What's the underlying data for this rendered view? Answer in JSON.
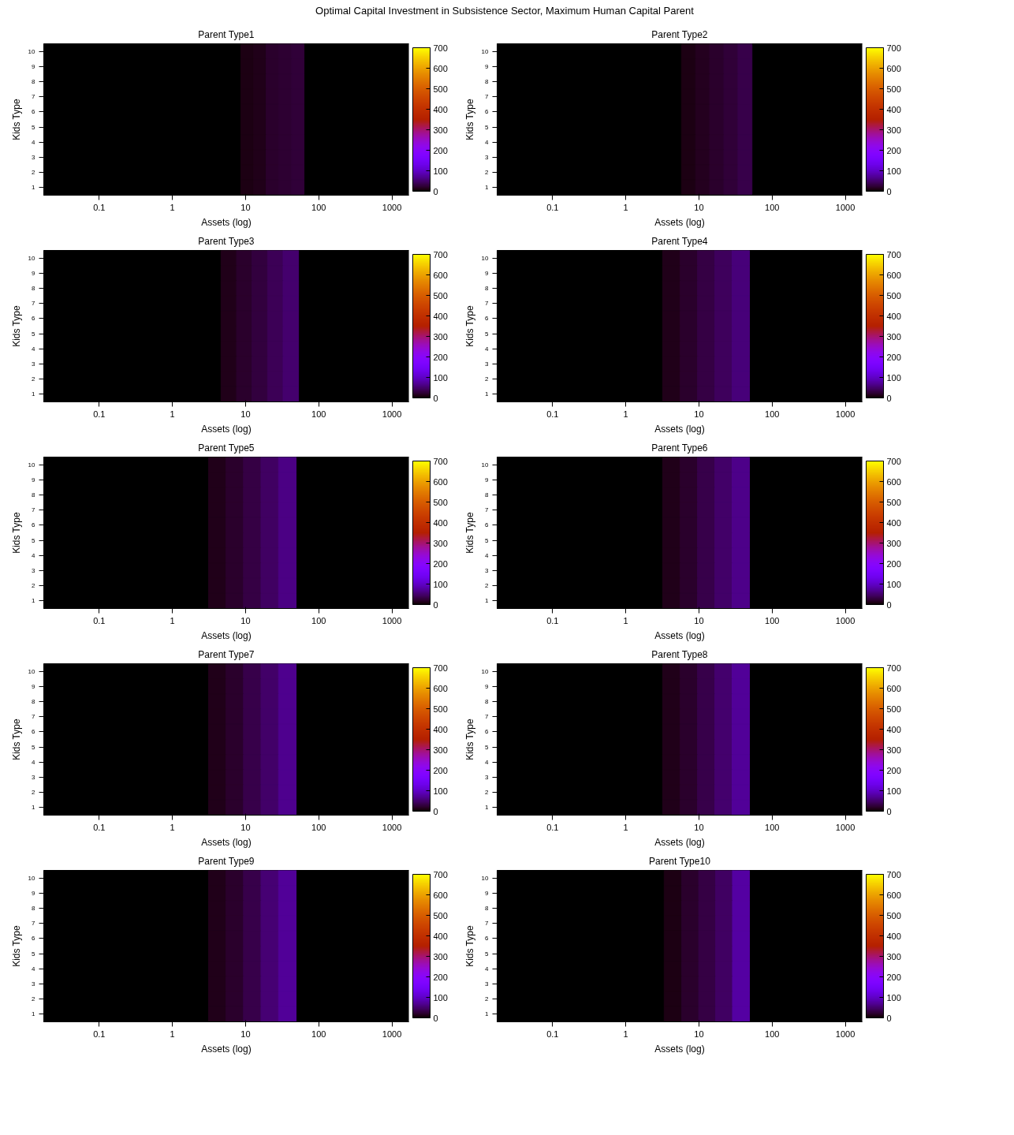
{
  "chart_data": [
    {
      "type": "other",
      "title": "Optimal Capital Investment in Subsistence Sector, Maximum Human Capital Parent"
    },
    {
      "type": "heatmap",
      "title": "Parent Type1",
      "xlabel": "Assets (log)",
      "ylabel": "Kids Type",
      "log": "x",
      "xlim": [
        0.0175,
        1700
      ],
      "xticks": [
        0.1,
        1,
        10,
        100,
        1000
      ],
      "clim": [
        0,
        700
      ],
      "cticks": [
        0,
        100,
        200,
        300,
        400,
        500,
        600,
        700
      ],
      "y_categories": [
        "10",
        "9",
        "8",
        "7",
        "6",
        "5",
        "4",
        "3",
        "2",
        "1"
      ],
      "x": [
        10.5,
        15.6,
        23.3,
        34.7,
        51.6
      ],
      "cells": [
        [
          8,
          12,
          18,
          22,
          25
        ],
        [
          8,
          12,
          18,
          22,
          25
        ],
        [
          8,
          12,
          18,
          22,
          25
        ],
        [
          8,
          12,
          18,
          22,
          25
        ],
        [
          8,
          12,
          18,
          22,
          25
        ],
        [
          8,
          12,
          18,
          22,
          25
        ],
        [
          8,
          12,
          18,
          22,
          25
        ],
        [
          8,
          12,
          18,
          22,
          25
        ],
        [
          8,
          12,
          18,
          22,
          25
        ],
        [
          8,
          12,
          18,
          22,
          25
        ]
      ]
    },
    {
      "type": "heatmap",
      "title": "Parent Type2",
      "xlabel": "Assets (log)",
      "ylabel": "Kids Type",
      "log": "x",
      "xlim": [
        0.0175,
        1700
      ],
      "xticks": [
        0.1,
        1,
        10,
        100,
        1000
      ],
      "clim": [
        0,
        700
      ],
      "cticks": [
        0,
        100,
        200,
        300,
        400,
        500,
        600,
        700
      ],
      "y_categories": [
        "10",
        "9",
        "8",
        "7",
        "6",
        "5",
        "4",
        "3",
        "2",
        "1"
      ],
      "x": [
        7.2,
        11.2,
        17.5,
        27.3,
        42.5
      ],
      "cells": [
        [
          8,
          14,
          20,
          26,
          32
        ],
        [
          8,
          14,
          20,
          26,
          32
        ],
        [
          8,
          14,
          20,
          26,
          32
        ],
        [
          8,
          14,
          20,
          26,
          32
        ],
        [
          8,
          14,
          20,
          26,
          32
        ],
        [
          8,
          14,
          20,
          26,
          32
        ],
        [
          8,
          14,
          20,
          26,
          32
        ],
        [
          8,
          14,
          20,
          26,
          32
        ],
        [
          8,
          14,
          20,
          26,
          32
        ],
        [
          8,
          14,
          20,
          26,
          32
        ]
      ]
    },
    {
      "type": "heatmap",
      "title": "Parent Type3",
      "xlabel": "Assets (log)",
      "ylabel": "Kids Type",
      "log": "x",
      "xlim": [
        0.0175,
        1700
      ],
      "xticks": [
        0.1,
        1,
        10,
        100,
        1000
      ],
      "clim": [
        0,
        700
      ],
      "cticks": [
        0,
        100,
        200,
        300,
        400,
        500,
        600,
        700
      ],
      "y_categories": [
        "10",
        "9",
        "8",
        "7",
        "6",
        "5",
        "4",
        "3",
        "2",
        "1"
      ],
      "x": [
        5.9,
        9.6,
        15.6,
        25.5,
        41.5
      ],
      "cells": [
        [
          10,
          18,
          28,
          38,
          50
        ],
        [
          10,
          18,
          28,
          38,
          50
        ],
        [
          10,
          18,
          28,
          38,
          50
        ],
        [
          10,
          18,
          28,
          38,
          50
        ],
        [
          10,
          18,
          28,
          38,
          50
        ],
        [
          10,
          18,
          28,
          38,
          50
        ],
        [
          10,
          18,
          28,
          38,
          50
        ],
        [
          10,
          18,
          28,
          38,
          50
        ],
        [
          10,
          18,
          28,
          38,
          50
        ],
        [
          10,
          18,
          28,
          38,
          50
        ]
      ]
    },
    {
      "type": "heatmap",
      "title": "Parent Type4",
      "xlabel": "Assets (log)",
      "ylabel": "Kids Type",
      "log": "x",
      "xlim": [
        0.0175,
        1700
      ],
      "xticks": [
        0.1,
        1,
        10,
        100,
        1000
      ],
      "clim": [
        0,
        700
      ],
      "cticks": [
        0,
        100,
        200,
        300,
        400,
        500,
        600,
        700
      ],
      "y_categories": [
        "10",
        "9",
        "8",
        "7",
        "6",
        "5",
        "4",
        "3",
        "2",
        "1"
      ],
      "x": [
        4.2,
        7.3,
        12.5,
        21.6,
        37.3
      ],
      "cells": [
        [
          10,
          18,
          30,
          42,
          55
        ],
        [
          10,
          18,
          30,
          42,
          55
        ],
        [
          10,
          18,
          30,
          42,
          55
        ],
        [
          10,
          18,
          30,
          42,
          55
        ],
        [
          10,
          18,
          30,
          42,
          55
        ],
        [
          10,
          18,
          30,
          42,
          55
        ],
        [
          10,
          18,
          30,
          42,
          55
        ],
        [
          10,
          18,
          30,
          42,
          55
        ],
        [
          10,
          18,
          30,
          42,
          55
        ],
        [
          10,
          18,
          30,
          42,
          55
        ]
      ]
    },
    {
      "type": "heatmap",
      "title": "Parent Type5",
      "xlabel": "Assets (log)",
      "ylabel": "Kids Type",
      "log": "x",
      "xlim": [
        0.0175,
        1700
      ],
      "xticks": [
        0.1,
        1,
        10,
        100,
        1000
      ],
      "clim": [
        0,
        700
      ],
      "cticks": [
        0,
        100,
        200,
        300,
        400,
        500,
        600,
        700
      ],
      "y_categories": [
        "10",
        "9",
        "8",
        "7",
        "6",
        "5",
        "4",
        "3",
        "2",
        "1"
      ],
      "x": [
        4.1,
        7.1,
        12.3,
        21.4,
        37.2
      ],
      "cells": [
        [
          10,
          18,
          30,
          44,
          60
        ],
        [
          10,
          18,
          30,
          44,
          60
        ],
        [
          10,
          18,
          30,
          44,
          60
        ],
        [
          10,
          18,
          30,
          44,
          60
        ],
        [
          10,
          18,
          30,
          44,
          60
        ],
        [
          10,
          18,
          30,
          44,
          60
        ],
        [
          10,
          18,
          30,
          44,
          60
        ],
        [
          10,
          18,
          30,
          44,
          60
        ],
        [
          10,
          18,
          30,
          44,
          60
        ],
        [
          10,
          18,
          30,
          44,
          60
        ]
      ]
    },
    {
      "type": "heatmap",
      "title": "Parent Type6",
      "xlabel": "Assets (log)",
      "ylabel": "Kids Type",
      "log": "x",
      "xlim": [
        0.0175,
        1700
      ],
      "xticks": [
        0.1,
        1,
        10,
        100,
        1000
      ],
      "clim": [
        0,
        700
      ],
      "cticks": [
        0,
        100,
        200,
        300,
        400,
        500,
        600,
        700
      ],
      "y_categories": [
        "10",
        "9",
        "8",
        "7",
        "6",
        "5",
        "4",
        "3",
        "2",
        "1"
      ],
      "x": [
        4.2,
        7.3,
        12.5,
        21.6,
        37.3
      ],
      "cells": [
        [
          10,
          20,
          32,
          46,
          62
        ],
        [
          10,
          20,
          32,
          46,
          62
        ],
        [
          10,
          20,
          32,
          46,
          62
        ],
        [
          10,
          20,
          32,
          46,
          62
        ],
        [
          10,
          20,
          32,
          46,
          62
        ],
        [
          10,
          20,
          32,
          46,
          62
        ],
        [
          10,
          20,
          32,
          46,
          62
        ],
        [
          10,
          20,
          32,
          46,
          62
        ],
        [
          10,
          20,
          32,
          46,
          62
        ],
        [
          10,
          20,
          32,
          46,
          62
        ]
      ]
    },
    {
      "type": "heatmap",
      "title": "Parent Type7",
      "xlabel": "Assets (log)",
      "ylabel": "Kids Type",
      "log": "x",
      "xlim": [
        0.0175,
        1700
      ],
      "xticks": [
        0.1,
        1,
        10,
        100,
        1000
      ],
      "clim": [
        0,
        700
      ],
      "cticks": [
        0,
        100,
        200,
        300,
        400,
        500,
        600,
        700
      ],
      "y_categories": [
        "10",
        "9",
        "8",
        "7",
        "6",
        "5",
        "4",
        "3",
        "2",
        "1"
      ],
      "x": [
        4.1,
        7.1,
        12.3,
        21.4,
        37.2
      ],
      "cells": [
        [
          10,
          20,
          32,
          48,
          66
        ],
        [
          10,
          20,
          32,
          48,
          66
        ],
        [
          10,
          20,
          32,
          48,
          66
        ],
        [
          10,
          20,
          32,
          48,
          66
        ],
        [
          10,
          20,
          32,
          48,
          66
        ],
        [
          10,
          20,
          32,
          48,
          66
        ],
        [
          10,
          20,
          32,
          48,
          66
        ],
        [
          10,
          20,
          32,
          48,
          66
        ],
        [
          10,
          20,
          32,
          48,
          66
        ],
        [
          10,
          20,
          32,
          48,
          66
        ]
      ]
    },
    {
      "type": "heatmap",
      "title": "Parent Type8",
      "xlabel": "Assets (log)",
      "ylabel": "Kids Type",
      "log": "x",
      "xlim": [
        0.0175,
        1700
      ],
      "xticks": [
        0.1,
        1,
        10,
        100,
        1000
      ],
      "clim": [
        0,
        700
      ],
      "cticks": [
        0,
        100,
        200,
        300,
        400,
        500,
        600,
        700
      ],
      "y_categories": [
        "10",
        "9",
        "8",
        "7",
        "6",
        "5",
        "4",
        "3",
        "2",
        "1"
      ],
      "x": [
        4.2,
        7.3,
        12.5,
        21.6,
        37.3
      ],
      "cells": [
        [
          10,
          20,
          34,
          50,
          70
        ],
        [
          10,
          20,
          34,
          50,
          70
        ],
        [
          10,
          20,
          34,
          50,
          70
        ],
        [
          10,
          20,
          34,
          50,
          70
        ],
        [
          10,
          20,
          34,
          50,
          70
        ],
        [
          10,
          20,
          34,
          50,
          70
        ],
        [
          10,
          20,
          34,
          50,
          70
        ],
        [
          10,
          20,
          34,
          50,
          70
        ],
        [
          10,
          20,
          34,
          50,
          70
        ],
        [
          10,
          20,
          34,
          50,
          70
        ]
      ]
    },
    {
      "type": "heatmap",
      "title": "Parent Type9",
      "xlabel": "Assets (log)",
      "ylabel": "Kids Type",
      "log": "x",
      "xlim": [
        0.0175,
        1700
      ],
      "xticks": [
        0.1,
        1,
        10,
        100,
        1000
      ],
      "clim": [
        0,
        700
      ],
      "cticks": [
        0,
        100,
        200,
        300,
        400,
        500,
        600,
        700
      ],
      "y_categories": [
        "10",
        "9",
        "8",
        "7",
        "6",
        "5",
        "4",
        "3",
        "2",
        "1"
      ],
      "x": [
        4.1,
        7.1,
        12.3,
        21.4,
        37.2
      ],
      "cells": [
        [
          10,
          20,
          34,
          52,
          72
        ],
        [
          10,
          20,
          34,
          52,
          72
        ],
        [
          10,
          20,
          34,
          52,
          72
        ],
        [
          10,
          20,
          34,
          52,
          72
        ],
        [
          10,
          20,
          34,
          52,
          72
        ],
        [
          10,
          20,
          34,
          52,
          72
        ],
        [
          10,
          20,
          34,
          52,
          72
        ],
        [
          10,
          20,
          34,
          52,
          72
        ],
        [
          10,
          20,
          34,
          52,
          72
        ],
        [
          10,
          20,
          34,
          52,
          72
        ]
      ]
    },
    {
      "type": "heatmap",
      "title": "Parent Type10",
      "xlabel": "Assets (log)",
      "ylabel": "Kids Type",
      "log": "x",
      "xlim": [
        0.0175,
        1700
      ],
      "xticks": [
        0.1,
        1,
        10,
        100,
        1000
      ],
      "clim": [
        0,
        700
      ],
      "cticks": [
        0,
        100,
        200,
        300,
        400,
        500,
        600,
        700
      ],
      "y_categories": [
        "10",
        "9",
        "8",
        "7",
        "6",
        "5",
        "4",
        "3",
        "2",
        "1"
      ],
      "x": [
        4.4,
        7.6,
        12.9,
        22,
        37.5
      ],
      "cells": [
        [
          8,
          18,
          30,
          45,
          78
        ],
        [
          8,
          18,
          30,
          45,
          78
        ],
        [
          8,
          18,
          30,
          45,
          78
        ],
        [
          8,
          18,
          30,
          45,
          78
        ],
        [
          8,
          18,
          30,
          45,
          78
        ],
        [
          8,
          18,
          30,
          45,
          78
        ],
        [
          8,
          18,
          30,
          45,
          78
        ],
        [
          8,
          18,
          30,
          45,
          78
        ],
        [
          8,
          18,
          30,
          45,
          78
        ],
        [
          8,
          18,
          30,
          45,
          78
        ]
      ]
    }
  ]
}
